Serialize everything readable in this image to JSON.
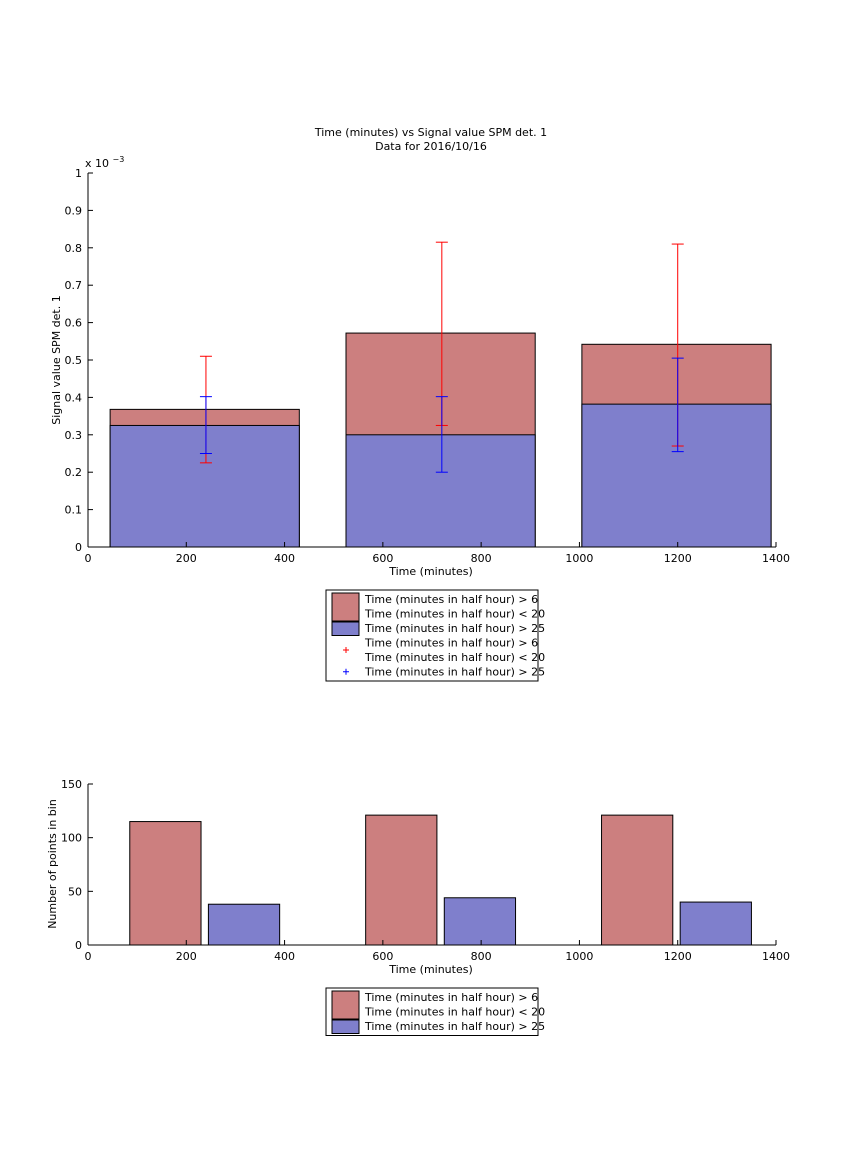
{
  "chart_data": [
    {
      "type": "bar",
      "title": "Time (minutes) vs Signal value SPM det. 1",
      "subtitle": "Data for 2016/10/16",
      "xlabel": "Time (minutes)",
      "ylabel": "Signal value SPM det. 1",
      "y_multiplier_label": "x 10",
      "y_multiplier_exponent": "−3",
      "xlim": [
        0,
        1400
      ],
      "ylim": [
        0,
        1
      ],
      "x_ticks": [
        "0",
        "200",
        "400",
        "600",
        "800",
        "1000",
        "1200",
        "1400"
      ],
      "y_ticks": [
        "0",
        "0.1",
        "0.2",
        "0.3",
        "0.4",
        "0.5",
        "0.6",
        "0.7",
        "0.8",
        "0.9",
        "1"
      ],
      "bars": [
        {
          "x_start": 45,
          "x_end": 430,
          "series": [
            {
              "name": "red",
              "value": 0.368
            },
            {
              "name": "blue",
              "value": 0.325
            }
          ]
        },
        {
          "x_start": 525,
          "x_end": 910,
          "series": [
            {
              "name": "red",
              "value": 0.572
            },
            {
              "name": "blue",
              "value": 0.3
            }
          ]
        },
        {
          "x_start": 1005,
          "x_end": 1390,
          "series": [
            {
              "name": "red",
              "value": 0.542
            },
            {
              "name": "blue",
              "value": 0.382
            }
          ]
        }
      ],
      "error_bars": [
        {
          "x": 240,
          "red": {
            "low": 0.225,
            "high": 0.51
          },
          "blue": {
            "low": 0.25,
            "high": 0.402
          }
        },
        {
          "x": 720,
          "red": {
            "low": 0.325,
            "high": 0.815
          },
          "blue": {
            "low": 0.2,
            "high": 0.402
          }
        },
        {
          "x": 1200,
          "red": {
            "low": 0.27,
            "high": 0.81
          },
          "blue": {
            "low": 0.255,
            "high": 0.505
          }
        }
      ],
      "legend": [
        {
          "kind": "patch",
          "color": "red",
          "lines": [
            "Time (minutes in half hour) > 6",
            "Time (minutes in half hour) < 20"
          ]
        },
        {
          "kind": "patch",
          "color": "blue",
          "lines": [
            "Time (minutes in half hour) > 25"
          ]
        },
        {
          "kind": "marker",
          "color": "red",
          "lines": [
            "Time (minutes in half hour) > 6",
            "Time (minutes in half hour) < 20"
          ]
        },
        {
          "kind": "marker",
          "color": "blue",
          "lines": [
            "Time (minutes in half hour) > 25"
          ]
        }
      ],
      "legend_position": "below"
    },
    {
      "type": "bar",
      "xlabel": "Time (minutes)",
      "ylabel": "Number of points in bin",
      "xlim": [
        0,
        1400
      ],
      "ylim": [
        0,
        150
      ],
      "x_ticks": [
        "0",
        "200",
        "400",
        "600",
        "800",
        "1000",
        "1200",
        "1400"
      ],
      "y_ticks": [
        "0",
        "50",
        "100",
        "150"
      ],
      "bars": [
        {
          "series": "red",
          "x_start": 85,
          "x_end": 230,
          "value": 115
        },
        {
          "series": "blue",
          "x_start": 245,
          "x_end": 390,
          "value": 38
        },
        {
          "series": "red",
          "x_start": 565,
          "x_end": 710,
          "value": 121
        },
        {
          "series": "blue",
          "x_start": 725,
          "x_end": 870,
          "value": 44
        },
        {
          "series": "red",
          "x_start": 1045,
          "x_end": 1190,
          "value": 121
        },
        {
          "series": "blue",
          "x_start": 1205,
          "x_end": 1350,
          "value": 40
        }
      ],
      "legend": [
        {
          "kind": "patch",
          "color": "red",
          "lines": [
            "Time (minutes in half hour) > 6",
            "Time (minutes in half hour) < 20"
          ]
        },
        {
          "kind": "patch",
          "color": "blue",
          "lines": [
            "Time (minutes in half hour) > 25"
          ]
        }
      ],
      "legend_position": "below"
    }
  ],
  "colors": {
    "red_fill": "#cc7f7f",
    "blue_fill": "#7f7fcc",
    "red_line": "#ff0000",
    "blue_line": "#0000ff"
  }
}
